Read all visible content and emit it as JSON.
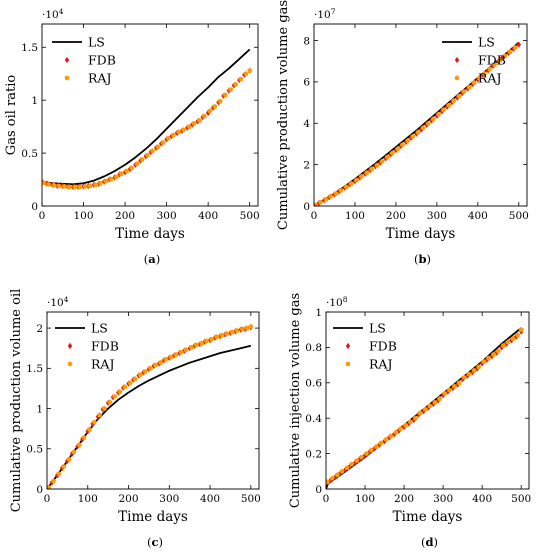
{
  "colors": {
    "LS": "#000000",
    "FDB": "#e31a1c",
    "RAJ": "#ff9a00"
  },
  "chart_data": [
    {
      "type": "line",
      "panel_label": "a",
      "xlabel": "Time days",
      "ylabel": "Gas oil ratio",
      "y_multiplier": "·10",
      "y_multiplier_exp": "4",
      "xlim": [
        0,
        520
      ],
      "ylim": [
        0,
        1.72
      ],
      "x_ticks": [
        0,
        100,
        200,
        300,
        400,
        500
      ],
      "y_ticks": [
        0,
        0.5,
        1,
        1.5
      ],
      "y_tick_labels": [
        "0",
        "0.5",
        "1",
        "1.5"
      ],
      "legend": "top-left",
      "series": [
        {
          "name": "LS",
          "style": "line",
          "x": [
            0,
            25,
            50,
            75,
            100,
            125,
            150,
            175,
            200,
            225,
            250,
            275,
            300,
            325,
            350,
            375,
            400,
            425,
            450,
            475,
            500
          ],
          "y": [
            0.23,
            0.215,
            0.21,
            0.205,
            0.215,
            0.24,
            0.28,
            0.33,
            0.39,
            0.46,
            0.54,
            0.63,
            0.73,
            0.83,
            0.93,
            1.03,
            1.12,
            1.22,
            1.3,
            1.39,
            1.48
          ]
        },
        {
          "name": "FDB",
          "style": "marker",
          "x": [
            0,
            12,
            25,
            37,
            50,
            62,
            75,
            87,
            100,
            112,
            125,
            137,
            150,
            162,
            175,
            187,
            200,
            212,
            225,
            237,
            250,
            262,
            275,
            287,
            300,
            312,
            325,
            337,
            350,
            362,
            375,
            387,
            400,
            412,
            425,
            437,
            450,
            462,
            475,
            487,
            500
          ],
          "y": [
            0.23,
            0.21,
            0.2,
            0.19,
            0.19,
            0.185,
            0.18,
            0.18,
            0.185,
            0.19,
            0.2,
            0.21,
            0.23,
            0.25,
            0.27,
            0.3,
            0.32,
            0.35,
            0.39,
            0.43,
            0.47,
            0.51,
            0.55,
            0.59,
            0.63,
            0.66,
            0.69,
            0.71,
            0.74,
            0.77,
            0.8,
            0.84,
            0.88,
            0.93,
            0.98,
            1.04,
            1.09,
            1.14,
            1.19,
            1.24,
            1.28
          ]
        },
        {
          "name": "RAJ",
          "style": "marker",
          "x": [
            4,
            16,
            29,
            41,
            54,
            66,
            79,
            91,
            104,
            116,
            129,
            141,
            154,
            166,
            179,
            191,
            204,
            216,
            229,
            241,
            254,
            266,
            279,
            291,
            304,
            316,
            329,
            341,
            354,
            366,
            379,
            391,
            404,
            416,
            429,
            441,
            454,
            466,
            479,
            491,
            500
          ],
          "y": [
            0.22,
            0.205,
            0.195,
            0.19,
            0.185,
            0.18,
            0.18,
            0.18,
            0.185,
            0.19,
            0.2,
            0.215,
            0.235,
            0.255,
            0.275,
            0.305,
            0.33,
            0.36,
            0.4,
            0.44,
            0.48,
            0.52,
            0.56,
            0.6,
            0.64,
            0.67,
            0.7,
            0.72,
            0.75,
            0.78,
            0.81,
            0.85,
            0.9,
            0.94,
            0.99,
            1.05,
            1.1,
            1.15,
            1.2,
            1.25,
            1.28
          ]
        }
      ]
    },
    {
      "type": "line",
      "panel_label": "b",
      "xlabel": "Time days",
      "ylabel": "Cumulative production volume gas",
      "y_multiplier": "·10",
      "y_multiplier_exp": "7",
      "xlim": [
        0,
        520
      ],
      "ylim": [
        0,
        8.8
      ],
      "x_ticks": [
        0,
        100,
        200,
        300,
        400,
        500
      ],
      "y_ticks": [
        0,
        2,
        4,
        6,
        8
      ],
      "y_tick_labels": [
        "0",
        "2",
        "4",
        "6",
        "8"
      ],
      "legend": "top-right",
      "series": [
        {
          "name": "LS",
          "style": "line",
          "x": [
            0,
            50,
            100,
            150,
            200,
            250,
            300,
            350,
            400,
            450,
            500
          ],
          "y": [
            0,
            0.6,
            1.3,
            2.05,
            2.85,
            3.65,
            4.5,
            5.35,
            6.2,
            7.05,
            7.9
          ]
        },
        {
          "name": "FDB",
          "style": "marker",
          "x": [
            0,
            12,
            25,
            37,
            50,
            62,
            75,
            87,
            100,
            112,
            125,
            137,
            150,
            162,
            175,
            187,
            200,
            212,
            225,
            237,
            250,
            262,
            275,
            287,
            300,
            312,
            325,
            337,
            350,
            362,
            375,
            387,
            400,
            412,
            425,
            437,
            450,
            462,
            475,
            487,
            500
          ],
          "y": [
            0,
            0.14,
            0.28,
            0.42,
            0.56,
            0.72,
            0.88,
            1.04,
            1.2,
            1.38,
            1.56,
            1.74,
            1.92,
            2.1,
            2.3,
            2.5,
            2.7,
            2.9,
            3.1,
            3.3,
            3.5,
            3.7,
            3.92,
            4.14,
            4.36,
            4.58,
            4.8,
            5.02,
            5.24,
            5.46,
            5.68,
            5.9,
            6.12,
            6.34,
            6.56,
            6.78,
            7.0,
            7.2,
            7.4,
            7.6,
            7.8
          ]
        },
        {
          "name": "RAJ",
          "style": "marker",
          "x": [
            4,
            16,
            29,
            41,
            54,
            66,
            79,
            91,
            104,
            116,
            129,
            141,
            154,
            166,
            179,
            191,
            204,
            216,
            229,
            241,
            254,
            266,
            279,
            291,
            304,
            316,
            329,
            341,
            354,
            366,
            379,
            391,
            404,
            416,
            429,
            441,
            454,
            466,
            479,
            491
          ],
          "y": [
            0.04,
            0.18,
            0.32,
            0.46,
            0.6,
            0.76,
            0.92,
            1.08,
            1.25,
            1.43,
            1.61,
            1.79,
            1.97,
            2.16,
            2.36,
            2.56,
            2.76,
            2.96,
            3.16,
            3.36,
            3.57,
            3.78,
            3.99,
            4.21,
            4.43,
            4.65,
            4.87,
            5.09,
            5.31,
            5.53,
            5.75,
            5.97,
            6.19,
            6.41,
            6.63,
            6.84,
            7.05,
            7.26,
            7.46,
            7.66
          ]
        }
      ]
    },
    {
      "type": "line",
      "panel_label": "c",
      "xlabel": "Time days",
      "ylabel": "Cumulative production volume oil",
      "y_multiplier": "·10",
      "y_multiplier_exp": "4",
      "xlim": [
        0,
        520
      ],
      "ylim": [
        0,
        2.2
      ],
      "x_ticks": [
        0,
        100,
        200,
        300,
        400,
        500
      ],
      "y_ticks": [
        0,
        0.5,
        1,
        1.5,
        2
      ],
      "y_tick_labels": [
        "0",
        "0.5",
        "1",
        "1.5",
        "2"
      ],
      "legend": "top-left",
      "series": [
        {
          "name": "LS",
          "style": "line",
          "x": [
            0,
            25,
            50,
            75,
            100,
            125,
            150,
            175,
            200,
            225,
            250,
            275,
            300,
            325,
            350,
            375,
            400,
            425,
            450,
            475,
            500
          ],
          "y": [
            0,
            0.17,
            0.35,
            0.53,
            0.71,
            0.87,
            1.0,
            1.11,
            1.2,
            1.28,
            1.35,
            1.41,
            1.47,
            1.52,
            1.57,
            1.61,
            1.65,
            1.69,
            1.72,
            1.75,
            1.78
          ]
        },
        {
          "name": "FDB",
          "style": "marker",
          "x": [
            0,
            12,
            25,
            37,
            50,
            62,
            75,
            87,
            100,
            112,
            125,
            137,
            150,
            162,
            175,
            187,
            200,
            212,
            225,
            237,
            250,
            262,
            275,
            287,
            300,
            312,
            325,
            337,
            350,
            362,
            375,
            387,
            400,
            412,
            425,
            437,
            450,
            462,
            475,
            487,
            500
          ],
          "y": [
            0,
            0.08,
            0.17,
            0.26,
            0.35,
            0.44,
            0.53,
            0.62,
            0.72,
            0.81,
            0.9,
            0.99,
            1.07,
            1.14,
            1.2,
            1.26,
            1.31,
            1.36,
            1.41,
            1.45,
            1.49,
            1.53,
            1.56,
            1.6,
            1.63,
            1.66,
            1.69,
            1.72,
            1.75,
            1.78,
            1.8,
            1.83,
            1.85,
            1.88,
            1.9,
            1.92,
            1.94,
            1.96,
            1.98,
            1.99,
            2.01
          ]
        },
        {
          "name": "RAJ",
          "style": "marker",
          "x": [
            4,
            16,
            29,
            41,
            54,
            66,
            79,
            91,
            104,
            116,
            129,
            141,
            154,
            166,
            179,
            191,
            204,
            216,
            229,
            241,
            254,
            266,
            279,
            291,
            304,
            316,
            329,
            341,
            354,
            366,
            379,
            391,
            404,
            416,
            429,
            441,
            454,
            466,
            479,
            491,
            500
          ],
          "y": [
            0.02,
            0.1,
            0.19,
            0.28,
            0.37,
            0.46,
            0.55,
            0.64,
            0.74,
            0.83,
            0.92,
            1.0,
            1.08,
            1.15,
            1.21,
            1.27,
            1.32,
            1.37,
            1.42,
            1.46,
            1.5,
            1.54,
            1.57,
            1.61,
            1.64,
            1.67,
            1.7,
            1.73,
            1.76,
            1.79,
            1.81,
            1.84,
            1.86,
            1.89,
            1.91,
            1.93,
            1.95,
            1.97,
            1.99,
            2.0,
            2.02
          ]
        }
      ]
    },
    {
      "type": "line",
      "panel_label": "d",
      "xlabel": "Time days",
      "ylabel": "Cumulative injection volume gas",
      "y_multiplier": "·10",
      "y_multiplier_exp": "8",
      "xlim": [
        0,
        520
      ],
      "ylim": [
        0,
        1.0
      ],
      "x_ticks": [
        0,
        100,
        200,
        300,
        400,
        500
      ],
      "y_ticks": [
        0,
        0.2,
        0.4,
        0.6,
        0.8,
        1
      ],
      "y_tick_labels": [
        "0",
        "0.2",
        "0.4",
        "0.6",
        "0.8",
        "1"
      ],
      "legend": "top-left",
      "series": [
        {
          "name": "LS",
          "style": "line",
          "x": [
            0,
            5,
            50,
            100,
            150,
            200,
            250,
            300,
            350,
            400,
            450,
            500
          ],
          "y": [
            0,
            0.03,
            0.1,
            0.18,
            0.27,
            0.36,
            0.45,
            0.54,
            0.63,
            0.72,
            0.82,
            0.91
          ]
        },
        {
          "name": "FDB",
          "style": "marker",
          "x": [
            0,
            12,
            25,
            37,
            50,
            62,
            75,
            87,
            100,
            112,
            125,
            137,
            150,
            162,
            175,
            187,
            200,
            212,
            225,
            237,
            250,
            262,
            275,
            287,
            300,
            312,
            325,
            337,
            350,
            362,
            375,
            387,
            400,
            412,
            425,
            437,
            450,
            462,
            475,
            487,
            500
          ],
          "y": [
            0.03,
            0.05,
            0.07,
            0.09,
            0.11,
            0.13,
            0.15,
            0.17,
            0.19,
            0.21,
            0.23,
            0.25,
            0.27,
            0.29,
            0.31,
            0.33,
            0.35,
            0.37,
            0.39,
            0.42,
            0.44,
            0.46,
            0.48,
            0.5,
            0.53,
            0.55,
            0.57,
            0.59,
            0.62,
            0.64,
            0.66,
            0.68,
            0.71,
            0.73,
            0.75,
            0.77,
            0.8,
            0.82,
            0.84,
            0.86,
            0.89
          ]
        },
        {
          "name": "RAJ",
          "style": "marker",
          "x": [
            4,
            16,
            29,
            41,
            54,
            66,
            79,
            91,
            104,
            116,
            129,
            141,
            154,
            166,
            179,
            191,
            204,
            216,
            229,
            241,
            254,
            266,
            279,
            291,
            304,
            316,
            329,
            341,
            354,
            366,
            379,
            391,
            404,
            416,
            429,
            441,
            454,
            466,
            479,
            491,
            500
          ],
          "y": [
            0.04,
            0.06,
            0.08,
            0.1,
            0.12,
            0.14,
            0.16,
            0.18,
            0.2,
            0.22,
            0.24,
            0.26,
            0.28,
            0.3,
            0.32,
            0.34,
            0.36,
            0.38,
            0.4,
            0.43,
            0.45,
            0.47,
            0.49,
            0.51,
            0.54,
            0.56,
            0.58,
            0.6,
            0.63,
            0.65,
            0.67,
            0.69,
            0.72,
            0.74,
            0.76,
            0.78,
            0.81,
            0.83,
            0.85,
            0.87,
            0.9
          ]
        }
      ]
    }
  ]
}
